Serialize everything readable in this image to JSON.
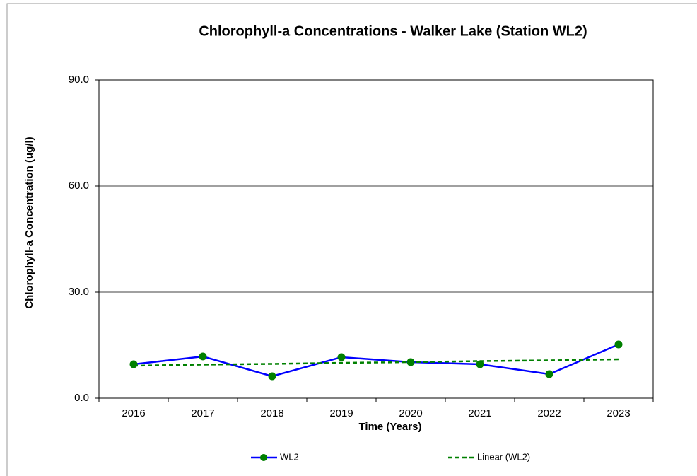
{
  "chart_data": {
    "type": "line",
    "title": "Chlorophyll-a Concentrations  - Walker Lake (Station WL2)",
    "x_label": "Time (Years)",
    "y_label": "Chlorophyll-a Concentration (ug/l)",
    "categories": [
      "2016",
      "2017",
      "2018",
      "2019",
      "2020",
      "2021",
      "2022",
      "2023"
    ],
    "series": [
      {
        "name": "WL2",
        "color": "#0000ff",
        "marker_color": "#008000",
        "values": [
          9.6,
          11.8,
          6.2,
          11.6,
          10.2,
          9.6,
          6.8,
          15.2
        ]
      },
      {
        "name": "Linear (WL2)",
        "color": "#008000",
        "dashed": true,
        "values": [
          9.2,
          9.5,
          9.7,
          10.0,
          10.2,
          10.5,
          10.7,
          11.0
        ]
      }
    ],
    "ylim": [
      0,
      90
    ],
    "yticks": [
      {
        "value": 0,
        "label": "0.0"
      },
      {
        "value": 30,
        "label": "30.0"
      },
      {
        "value": 60,
        "label": "60.0"
      },
      {
        "value": 90,
        "label": "90.0"
      }
    ],
    "grid": true,
    "legend": "bottom"
  }
}
